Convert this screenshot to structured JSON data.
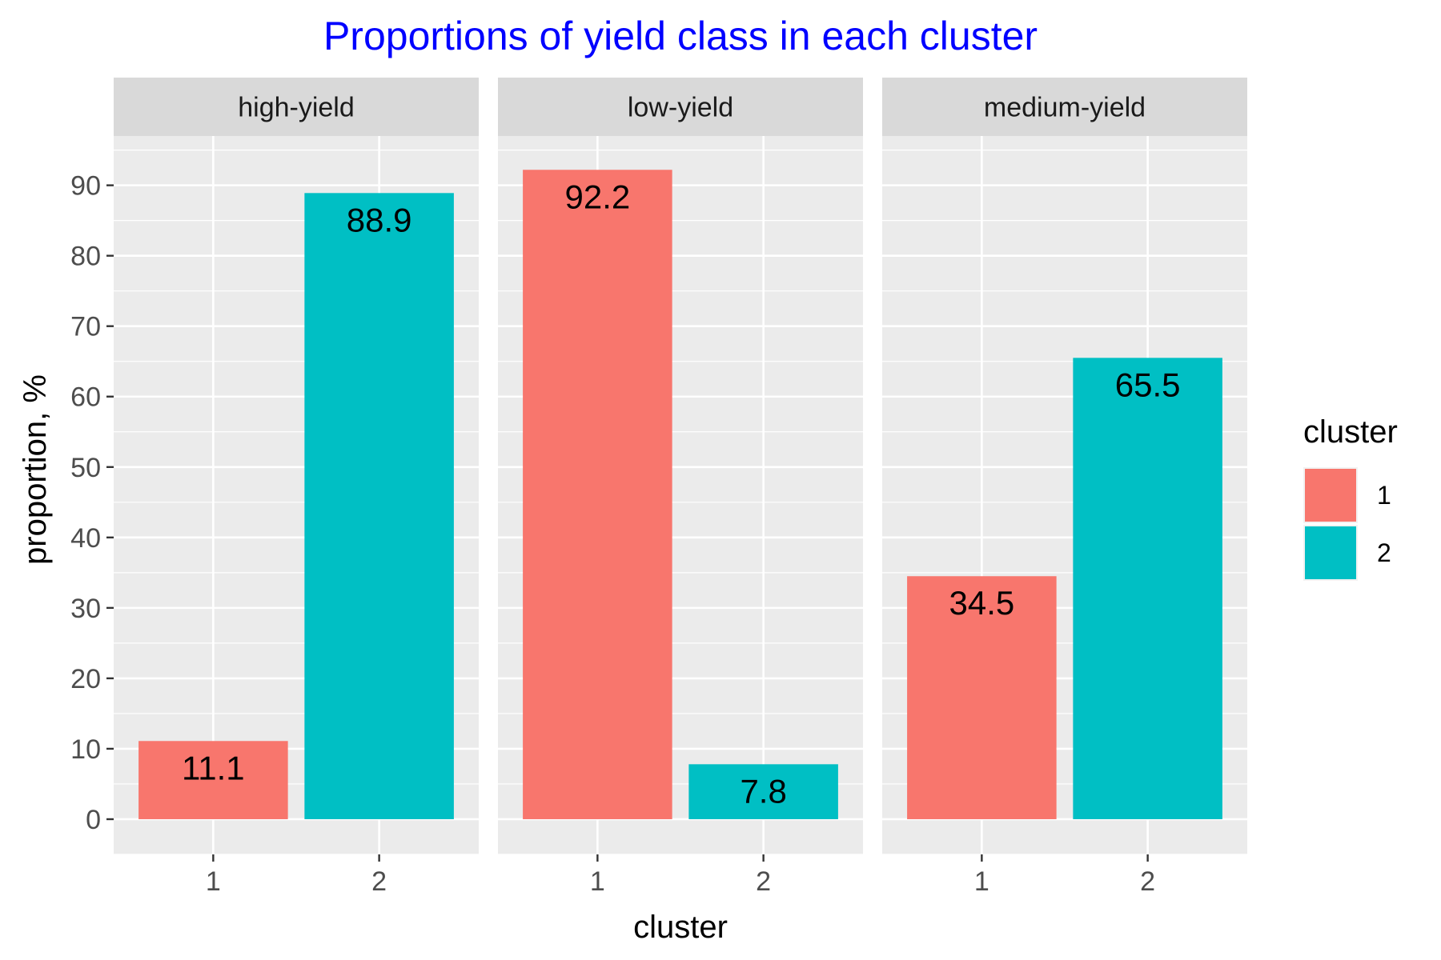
{
  "chart_data": {
    "type": "bar",
    "title": "Proportions of yield class in each cluster",
    "xlabel": "cluster",
    "ylabel": "proportion, %",
    "ylim": [
      -5,
      97
    ],
    "yticks": [
      0,
      10,
      20,
      30,
      40,
      50,
      60,
      70,
      80,
      90
    ],
    "grid": true,
    "categories": [
      "1",
      "2"
    ],
    "colors": {
      "1": "#F8766D",
      "2": "#00BFC4"
    },
    "facets": [
      {
        "label": "high-yield",
        "values": [
          11.1,
          88.9
        ],
        "data_labels": [
          "11.1",
          "88.9"
        ]
      },
      {
        "label": "low-yield",
        "values": [
          92.2,
          7.8
        ],
        "data_labels": [
          "92.2",
          "7.8"
        ]
      },
      {
        "label": "medium-yield",
        "values": [
          34.5,
          65.5
        ],
        "data_labels": [
          "34.5",
          "65.5"
        ]
      }
    ],
    "legend": {
      "title": "cluster",
      "placement": "right",
      "entries": [
        "1",
        "2"
      ]
    }
  }
}
